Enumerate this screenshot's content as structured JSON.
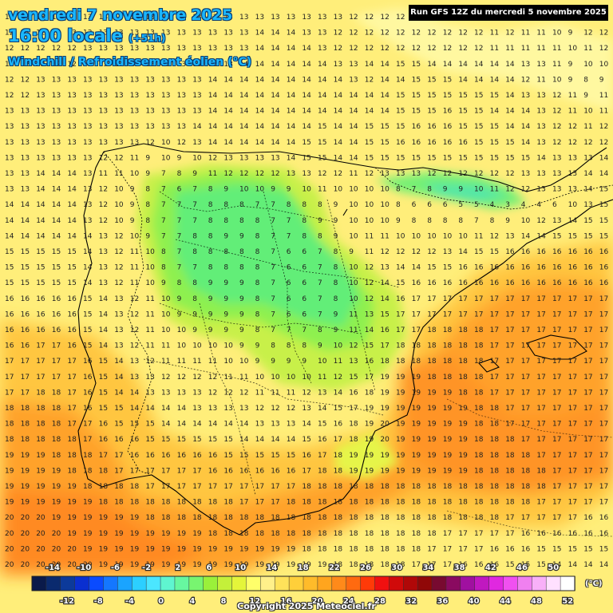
{
  "header": {
    "date": "vendredi 7 novembre 2025",
    "time": "16:00 locale",
    "lead": "(+51h)",
    "parameter": "Windchill / Refroidissement éolien (°C)",
    "run": "Run GFS 12Z du mercredi 5 novembre 2025"
  },
  "legend": {
    "unit": "(°C)",
    "top_labels": [
      "-14",
      "-10",
      "-6",
      "-2",
      "2",
      "6",
      "10",
      "14",
      "18",
      "22",
      "26",
      "30",
      "34",
      "38",
      "42",
      "46",
      "50"
    ],
    "bottom_labels": [
      "-12",
      "-8",
      "-4",
      "0",
      "4",
      "8",
      "12",
      "16",
      "20",
      "24",
      "28",
      "32",
      "36",
      "40",
      "44",
      "48",
      "52"
    ],
    "colors": [
      "#0a1a4a",
      "#0a2a6e",
      "#0c3a9a",
      "#0a2fd0",
      "#0a4bff",
      "#1477ff",
      "#1aa4ff",
      "#2ccfff",
      "#4be6ff",
      "#5ff5d0",
      "#67f7a0",
      "#78f570",
      "#9af03a",
      "#c4f03a",
      "#e4f53a",
      "#ffff6a",
      "#fff08a",
      "#ffe25a",
      "#ffcf3a",
      "#ffbb2a",
      "#ffa51e",
      "#ff8a1a",
      "#ff6a10",
      "#ff3a08",
      "#f01010",
      "#d00a0a",
      "#b00808",
      "#900808",
      "#780a30",
      "#8a0a60",
      "#a010a0",
      "#c018c0",
      "#e028e0",
      "#f050f0",
      "#f080f0",
      "#f8b0f8",
      "#ffe0ff",
      "#ffffff"
    ]
  },
  "copyright": "Copyright 2025 Meteociel.fr",
  "map": {
    "grid_values": [
      "13 13 13 13 13 13 13 13 13 13 13 13 13 13 13 13 13 13 13 13 13 13 12 12 12 12 12 12 12 12 12 12 12 12 12 12 12 12 12",
      "12 12 12 12 13 13 13 13 13 13 13 13 13 13 13 13 14 14 14 13 13 12 12 12 12 12 12 12 12 12 12 11 12 11 11 10 9 12 12",
      "12 12 12 12 12 13 13 13 13 13 13 13 13 13 13 13 14 14 14 14 13 12 12 12 12 12 12 12 12 12 12 11 11 11 11 11 10 11 12",
      "12 12 12 12 12 13 13 13 13 13 13 13 13 13 13 14 14 14 14 14 14 13 13 14 14 15 15 14 14 14 14 14 14 13 13 11 9 10 10",
      "12 12 13 13 13 13 13 13 13 13 13 13 13 14 14 14 14 14 14 14 14 14 13 12 14 14 15 15 15 14 14 14 14 12 11 10 9 8 9",
      "12 12 13 13 13 13 13 13 13 13 13 13 13 14 14 14 14 14 14 14 14 14 14 14 14 15 15 15 15 15 15 15 14 13 13 12 11 9 11",
      "13 13 13 13 13 13 13 13 13 13 13 13 13 14 14 14 14 14 14 14 14 14 14 14 14 15 15 15 16 15 15 14 14 14 13 12 11 10 11",
      "13 13 13 13 13 13 13 13 13 13 13 13 14 14 14 14 14 14 14 14 15 14 14 15 15 15 16 16 16 15 15 15 14 14 13 12 12 11 12",
      "13 13 13 13 13 13 13 13 13 12 10 12 13 14 14 14 14 14 14 15 15 14 14 15 15 16 16 16 16 16 15 15 15 14 13 12 12 12 12",
      "13 13 13 13 13 13 12 12 11 9 10 9 10 12 13 13 13 13 14 15 15 14 14 15 15 15 15 15 15 15 15 15 15 15 14 13 13 13 14",
      "13 13 14 14 14 13 11 11 10 9 7 8 9 11 12 12 12 12 13 13 12 12 11 12 13 13 13 12 12 12 12 12 12 13 13 13 13 14 14",
      "13 13 14 14 14 13 12 10 9 8 7 6 7 8 9 10 10 9 9 10 11 10 10 10 10 8 7 8 9 9 10 11 12 12 13 13 13 14 15",
      "14 14 14 14 14 13 12 10 9 8 7 7 7 8 8 8 7 7 8 8 8 9 10 10 10 8 6 6 6 5 5 4 3 4 4 6 10 13 15",
      "14 14 14 14 14 13 12 10 9 8 7 7 7 8 8 8 8 7 7 8 9 9 10 10 10 9 8 8 8 8 7 8 9 10 12 13 14 15 15",
      "14 14 14 14 14 14 13 12 10 9 7 7 8 8 9 9 8 7 7 8 8 9 10 11 11 10 10 10 10 10 11 12 13 14 14 15 15 15 15",
      "15 15 15 15 15 14 13 12 11 10 8 7 8 8 8 8 8 7 6 6 7 8 9 11 12 12 12 12 13 14 15 15 16 16 16 16 16 16 16",
      "15 15 15 15 15 14 13 12 11 10 8 7 7 8 8 8 8 7 6 6 7 8 10 12 13 14 14 15 15 16 16 16 16 16 16 16 16 16 16",
      "15 15 15 15 15 14 13 12 11 10 9 8 8 9 9 9 8 7 6 6 7 8 10 12 14 15 16 16 16 16 16 16 16 16 16 16 16 16 16",
      "16 16 16 16 16 15 14 13 12 11 10 9 8 9 9 9 8 7 6 6 7 8 10 12 14 16 17 17 17 17 17 17 17 17 17 17 17 17 17",
      "16 16 16 16 16 15 14 13 12 11 10 9 9 9 9 9 8 7 6 6 7 9 11 13 15 17 17 17 17 17 17 17 17 17 17 17 17 17 17",
      "16 16 16 16 16 15 14 13 12 11 10 10 9 9 9 9 8 7 7 7 8 9 11 14 16 17 17 18 18 18 18 17 17 17 17 17 17 17 17",
      "16 16 17 17 16 15 14 13 12 11 11 10 10 10 10 9 9 8 8 8 9 10 12 15 17 18 18 18 18 18 18 17 17 17 17 17 17 17 17",
      "17 17 17 17 17 16 15 14 13 12 11 11 11 11 10 10 9 9 9 9 10 11 13 16 18 18 18 18 18 18 18 17 17 17 17 17 17 17 17",
      "17 17 17 17 17 16 15 14 13 13 12 12 12 12 11 11 10 10 10 10 11 12 15 17 19 19 19 18 18 18 18 17 17 17 17 17 17 17 17",
      "17 17 18 18 17 16 15 14 14 13 13 13 13 12 12 12 11 11 11 12 13 14 16 18 19 19 19 19 19 18 18 17 17 17 17 17 17 17 17",
      "18 18 18 18 17 16 15 15 14 14 14 14 13 13 13 13 12 12 12 13 14 15 17 19 19 19 19 19 19 19 18 18 17 17 17 17 17 17 17",
      "18 18 18 18 17 17 16 15 15 15 14 14 14 14 14 14 13 13 13 14 15 16 18 19 20 19 19 19 19 19 18 18 17 17 17 17 17 17 17",
      "18 18 18 18 18 17 16 16 16 15 15 15 15 15 15 14 14 14 14 15 16 17 18 19 20 19 19 19 19 19 18 18 18 17 17 17 17 17 17",
      "19 19 19 18 18 18 17 17 16 16 16 16 16 16 15 15 15 15 15 16 17 18 19 19 19 19 19 19 19 19 18 18 18 18 17 17 17 17 17",
      "19 19 19 19 18 18 18 17 17 17 17 17 17 16 16 16 16 16 16 17 18 18 19 19 19 19 19 19 19 19 18 18 18 18 18 17 17 17 17",
      "19 19 19 19 19 18 18 18 18 17 17 17 17 17 17 17 17 17 17 18 18 18 18 18 18 18 18 18 18 18 18 18 18 18 18 17 17 17 17",
      "19 19 19 19 19 19 18 18 18 18 18 18 18 18 18 17 17 17 18 18 18 18 18 18 18 18 18 18 18 18 18 18 18 18 17 17 17 17 17",
      "20 20 20 19 19 19 19 19 19 18 18 18 18 18 18 18 18 18 18 18 18 18 18 18 18 18 18 18 18 18 18 18 17 17 17 17 17 16 16",
      "20 20 20 20 19 19 19 19 19 19 19 19 19 18 18 18 18 18 18 18 18 18 18 18 18 18 18 18 17 17 17 17 17 16 16 16 16 16 16",
      "20 20 20 20 20 19 19 19 19 19 19 19 19 19 19 19 19 19 19 18 18 18 18 18 18 18 18 17 17 17 17 16 16 16 15 15 15 15 15",
      "20 20 20 20 20 20 19 19 19 19 19 19 19 19 19 19 19 19 19 19 19 18 18 18 18 18 17 17 17 16 16 16 15 15 15 14 14 14 14",
      "20 20 20 20 20 20 20 20 19 19 19 19 19 19 19 19 19 19 19 19 19 19 18 18 18 17 17 16 16 16 15 15 15 14 14 13 13 12 12"
    ]
  }
}
